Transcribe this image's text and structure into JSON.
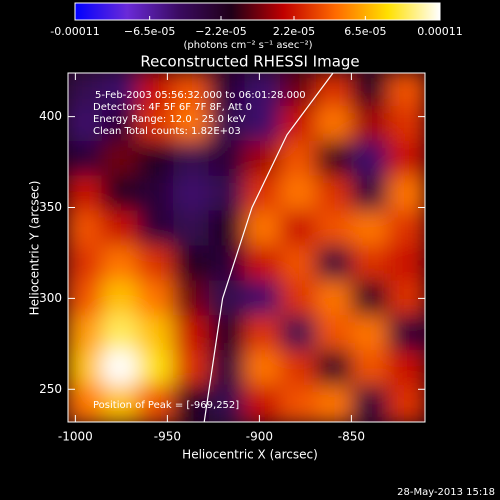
{
  "chart_data": {
    "type": "image",
    "title": "Reconstructed RHESSI Image",
    "xlabel": "Heliocentric X (arcsec)",
    "ylabel": "Heliocentric Y (arcsec)",
    "xlim": [
      -1004,
      -810
    ],
    "ylim": [
      232,
      424
    ],
    "xticks": [
      -1000,
      -950,
      -900,
      -850
    ],
    "yticks": [
      250,
      300,
      350,
      400
    ],
    "colorbar": {
      "units": "(photons cm⁻² s⁻¹ asec⁻²)",
      "lim": [
        -0.00011,
        0.00011
      ],
      "ticks": [
        {
          "value": -0.00011,
          "label": "-0.00011"
        },
        {
          "value": -6.5e-05,
          "label": "−6.5e-05"
        },
        {
          "value": -2.2e-05,
          "label": "−2.2e-05"
        },
        {
          "value": 2.2e-05,
          "label": "2.2e-05"
        },
        {
          "value": 6.5e-05,
          "label": "6.5e-05"
        },
        {
          "value": 0.00011,
          "label": "0.00011"
        }
      ],
      "colors": [
        "#0000ff",
        "#6a2ad8",
        "#3a0a60",
        "#200018",
        "#c00000",
        "#ff6a00",
        "#ffe000",
        "#ffffff"
      ]
    },
    "z": [
      [
        -4e-05,
        -5e-05,
        2e-05,
        4e-05,
        -3e-05,
        -5e-05,
        0,
        3e-05,
        -2e-05,
        4e-05
      ],
      [
        -5e-05,
        -3e-05,
        3e-05,
        5e-05,
        -4e-05,
        -5e-05,
        2e-05,
        5e-05,
        1e-05,
        3e-05
      ],
      [
        -3e-05,
        0,
        -2e-05,
        -4e-05,
        -3e-05,
        1e-05,
        4e-05,
        -1e-05,
        -5e-05,
        2e-05
      ],
      [
        2e-05,
        -2e-05,
        -3e-05,
        -5e-05,
        -4e-05,
        3e-05,
        5e-05,
        3e-05,
        -3e-05,
        5e-05
      ],
      [
        4e-05,
        2e-05,
        -3e-05,
        -4e-05,
        -2e-05,
        5e-05,
        2e-05,
        4e-05,
        5e-05,
        3e-05
      ],
      [
        3e-05,
        5e-05,
        3e-05,
        -2e-05,
        -3e-05,
        2e-05,
        4e-05,
        -3e-05,
        3e-05,
        2e-05
      ],
      [
        4e-05,
        7e-05,
        5e-05,
        0,
        -4e-05,
        -5e-05,
        3e-05,
        5e-05,
        -2e-05,
        3e-05
      ],
      [
        6e-05,
        9e-05,
        7e-05,
        2e-05,
        -2e-05,
        3e-05,
        -4e-05,
        4e-05,
        5e-05,
        -3e-05
      ],
      [
        7e-05,
        0.00011,
        8e-05,
        3e-05,
        -3e-05,
        5e-05,
        3e-05,
        -2e-05,
        4e-05,
        2e-05
      ],
      [
        5e-05,
        7e-05,
        4e-05,
        -2e-05,
        -4e-05,
        2e-05,
        4e-05,
        5e-05,
        -3e-05,
        3e-05
      ]
    ],
    "limb": {
      "x": [
        -930,
        -920,
        -904,
        -885,
        -860
      ],
      "y": [
        232,
        300,
        350,
        390,
        424
      ]
    },
    "annotations": [
      "5-Feb-2003 05:56:32.000 to 06:01:28.000",
      "Detectors: 4F 5F 6F 7F 8F, Att 0",
      "Energy Range: 12.0 - 25.0 keV",
      "Clean     Total counts: 1.82E+03"
    ],
    "peak_label": "Position of Peak = [-969,252]",
    "footer": "28-May-2013 15:18"
  }
}
